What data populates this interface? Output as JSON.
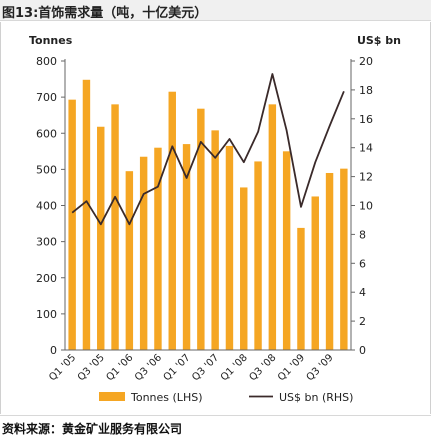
{
  "header": {
    "title": "图13:首饰需求量（吨，十亿美元）"
  },
  "footer": {
    "source": "资料来源：黄金矿业服务有限公司"
  },
  "colors": {
    "bar": "#F5A623",
    "line": "#3a2a2a",
    "axis": "#666666",
    "text": "#222222"
  },
  "chart_data": {
    "type": "bar",
    "categories": [
      "Q1 '05",
      "Q2 '05",
      "Q3 '05",
      "Q4 '05",
      "Q1 '06",
      "Q2 '06",
      "Q3 '06",
      "Q4 '06",
      "Q1 '07",
      "Q2 '07",
      "Q3 '07",
      "Q4 '07",
      "Q1 '08",
      "Q2 '08",
      "Q3 '08",
      "Q4 '08",
      "Q1 '09",
      "Q2 '09",
      "Q3 '09",
      "Q4 '09"
    ],
    "tick_labels": [
      "Q1 '05",
      "Q3 '05",
      "Q1 '06",
      "Q3 '06",
      "Q1 '07",
      "Q3 '07",
      "Q1 '08",
      "Q3 '08",
      "Q1 '09",
      "Q3 '09"
    ],
    "series": [
      {
        "name": "Tonnes (LHS)",
        "type": "bar",
        "axis": "left",
        "values": [
          693,
          748,
          618,
          680,
          495,
          535,
          560,
          715,
          570,
          668,
          608,
          565,
          450,
          522,
          680,
          550,
          338,
          425,
          490,
          502
        ]
      },
      {
        "name": "US$ bn (RHS)",
        "type": "line",
        "axis": "right",
        "values": [
          9.5,
          10.3,
          8.7,
          10.6,
          8.7,
          10.8,
          11.3,
          14.1,
          11.9,
          14.4,
          13.3,
          14.6,
          13.0,
          15.1,
          19.1,
          15.2,
          9.9,
          13.0,
          15.5,
          17.9
        ]
      }
    ],
    "left_axis": {
      "title": "Tonnes",
      "min": 0,
      "max": 800,
      "step": 100,
      "ticks": [
        "0",
        "100",
        "200",
        "300",
        "400",
        "500",
        "600",
        "700",
        "800"
      ]
    },
    "right_axis": {
      "title": "US$ bn",
      "min": 0,
      "max": 20,
      "step": 2,
      "ticks": [
        "0",
        "2",
        "4",
        "6",
        "8",
        "10",
        "12",
        "14",
        "16",
        "18",
        "20"
      ]
    },
    "grid": false,
    "legend_position": "bottom"
  }
}
